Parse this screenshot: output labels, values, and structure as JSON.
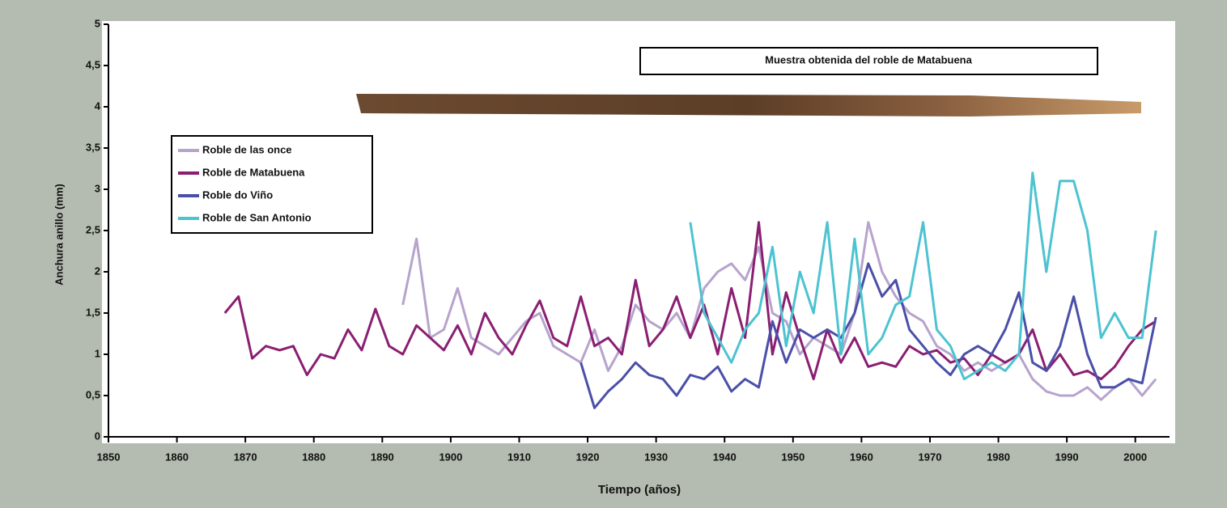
{
  "chart_data": {
    "type": "line",
    "annotation": "Muestra obtenida del roble de Matabuena",
    "xlabel": "Tiempo (años)",
    "ylabel": "Anchura anillo (mm)",
    "x": [
      1867,
      1869,
      1871,
      1873,
      1875,
      1877,
      1879,
      1881,
      1883,
      1885,
      1887,
      1889,
      1891,
      1893,
      1895,
      1897,
      1899,
      1901,
      1903,
      1905,
      1907,
      1909,
      1911,
      1913,
      1915,
      1917,
      1919,
      1921,
      1923,
      1925,
      1927,
      1929,
      1931,
      1933,
      1935,
      1937,
      1939,
      1941,
      1943,
      1945,
      1947,
      1949,
      1951,
      1953,
      1955,
      1957,
      1959,
      1961,
      1963,
      1965,
      1967,
      1969,
      1971,
      1973,
      1975,
      1977,
      1979,
      1981,
      1983,
      1985,
      1987,
      1989,
      1991,
      1993,
      1995,
      1997,
      1999,
      2001,
      2003
    ],
    "series": [
      {
        "name": "Roble de las once",
        "color": "#b7a3cc",
        "values": [
          null,
          null,
          null,
          null,
          null,
          null,
          null,
          null,
          null,
          null,
          null,
          null,
          null,
          1.6,
          2.4,
          1.2,
          1.3,
          1.8,
          1.2,
          1.1,
          1.0,
          1.2,
          1.4,
          1.5,
          1.1,
          1.0,
          0.9,
          1.3,
          0.8,
          1.1,
          1.6,
          1.4,
          1.3,
          1.5,
          1.2,
          1.8,
          2.0,
          2.1,
          1.9,
          2.3,
          1.5,
          1.4,
          1.0,
          1.2,
          1.1,
          1.0,
          1.5,
          2.6,
          2.0,
          1.7,
          1.5,
          1.4,
          1.1,
          1.0,
          0.8,
          0.9,
          0.8,
          0.9,
          1.0,
          0.7,
          0.55,
          0.5,
          0.5,
          0.6,
          0.45,
          0.6,
          0.7,
          0.5,
          0.7
        ]
      },
      {
        "name": "Roble de Matabuena",
        "color": "#8a1f72",
        "values": [
          1.5,
          1.7,
          0.95,
          1.1,
          1.05,
          1.1,
          0.75,
          1.0,
          0.95,
          1.3,
          1.05,
          1.55,
          1.1,
          1.0,
          1.35,
          1.2,
          1.05,
          1.35,
          1.0,
          1.5,
          1.2,
          1.0,
          1.35,
          1.65,
          1.2,
          1.1,
          1.7,
          1.1,
          1.2,
          1.0,
          1.9,
          1.1,
          1.3,
          1.7,
          1.2,
          1.6,
          1.0,
          1.8,
          1.2,
          2.6,
          1.0,
          1.75,
          1.2,
          0.7,
          1.3,
          0.9,
          1.2,
          0.85,
          0.9,
          0.85,
          1.1,
          1.0,
          1.05,
          0.9,
          0.95,
          0.75,
          1.0,
          0.9,
          1.0,
          1.3,
          0.8,
          1.0,
          0.75,
          0.8,
          0.7,
          0.85,
          1.1,
          1.3,
          1.4
        ]
      },
      {
        "name": "Roble do Viño",
        "color": "#4a4fa8",
        "values": [
          null,
          null,
          null,
          null,
          null,
          null,
          null,
          null,
          null,
          null,
          null,
          null,
          null,
          null,
          null,
          null,
          null,
          null,
          null,
          null,
          null,
          null,
          null,
          null,
          null,
          null,
          0.9,
          0.35,
          0.55,
          0.7,
          0.9,
          0.75,
          0.7,
          0.5,
          0.75,
          0.7,
          0.85,
          0.55,
          0.7,
          0.6,
          1.4,
          0.9,
          1.3,
          1.2,
          1.3,
          1.2,
          1.5,
          2.1,
          1.7,
          1.9,
          1.3,
          1.1,
          0.9,
          0.75,
          1.0,
          1.1,
          1.0,
          1.3,
          1.75,
          0.9,
          0.8,
          1.1,
          1.7,
          1.0,
          0.6,
          0.6,
          0.7,
          0.65,
          1.45
        ]
      },
      {
        "name": "Roble de San Antonio",
        "color": "#4cc3d1",
        "values": [
          null,
          null,
          null,
          null,
          null,
          null,
          null,
          null,
          null,
          null,
          null,
          null,
          null,
          null,
          null,
          null,
          null,
          null,
          null,
          null,
          null,
          null,
          null,
          null,
          null,
          null,
          null,
          null,
          null,
          null,
          null,
          null,
          null,
          null,
          2.6,
          1.5,
          1.2,
          0.9,
          1.3,
          1.5,
          2.3,
          1.1,
          2.0,
          1.5,
          2.6,
          1.0,
          2.4,
          1.0,
          1.2,
          1.6,
          1.7,
          2.6,
          1.3,
          1.1,
          0.7,
          0.8,
          0.9,
          0.8,
          1.0,
          3.2,
          2.0,
          3.1,
          3.1,
          2.5,
          1.2,
          1.5,
          1.2,
          1.2,
          2.5
        ]
      }
    ],
    "xlim": [
      1850,
      2005
    ],
    "xticks": [
      1850,
      1860,
      1870,
      1880,
      1890,
      1900,
      1910,
      1920,
      1930,
      1940,
      1950,
      1960,
      1970,
      1980,
      1990,
      2000
    ],
    "ylim": [
      0,
      5
    ],
    "yticks": [
      0,
      {
        "value": 0.5,
        "label": "0,5"
      },
      1,
      {
        "value": 1.5,
        "label": "1,5"
      },
      2,
      {
        "value": 2.5,
        "label": "2,5"
      },
      3,
      {
        "value": 3.5,
        "label": "3,5"
      },
      4,
      {
        "value": 4.5,
        "label": "4,5"
      },
      5
    ],
    "grid": false,
    "legend": "upper left"
  }
}
